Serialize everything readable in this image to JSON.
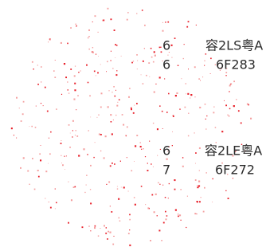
{
  "rows": [
    {
      "left": "6",
      "right": "容2LS粤A"
    },
    {
      "left": "6",
      "right": "6F283"
    },
    {
      "left": "6",
      "right": "容2LE粤A"
    },
    {
      "left": "7",
      "right": "6F272"
    }
  ]
}
